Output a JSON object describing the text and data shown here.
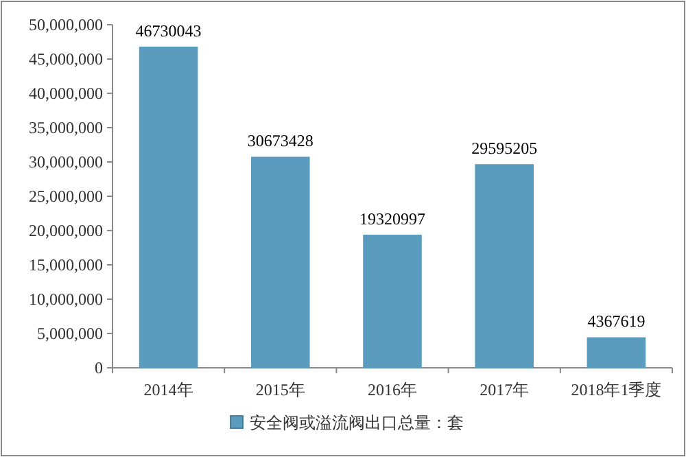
{
  "chart_data": {
    "type": "bar",
    "categories": [
      "2014年",
      "2015年",
      "2016年",
      "2017年",
      "2018年1季度"
    ],
    "series": [
      {
        "name": "安全阀或溢流阀出口总量：套",
        "color": "#5b9bbd",
        "values": [
          46730043,
          30673428,
          19320997,
          29595205,
          4367619
        ]
      }
    ],
    "ylim": [
      0,
      50000000
    ],
    "yticks": [
      0,
      {
        "value": 5000000,
        "label": "5,000,000"
      },
      {
        "value": 10000000,
        "label": "10,000,000"
      },
      {
        "value": 15000000,
        "label": "15,000,000"
      },
      {
        "value": 20000000,
        "label": "20,000,000"
      },
      {
        "value": 25000000,
        "label": "25,000,000"
      },
      {
        "value": 30000000,
        "label": "30,000,000"
      },
      {
        "value": 35000000,
        "label": "35,000,000"
      },
      {
        "value": 40000000,
        "label": "40,000,000"
      },
      {
        "value": 45000000,
        "label": "45,000,000"
      },
      {
        "value": 50000000,
        "label": "50,000,000"
      }
    ],
    "data_labels": true,
    "legend": "bottom"
  }
}
